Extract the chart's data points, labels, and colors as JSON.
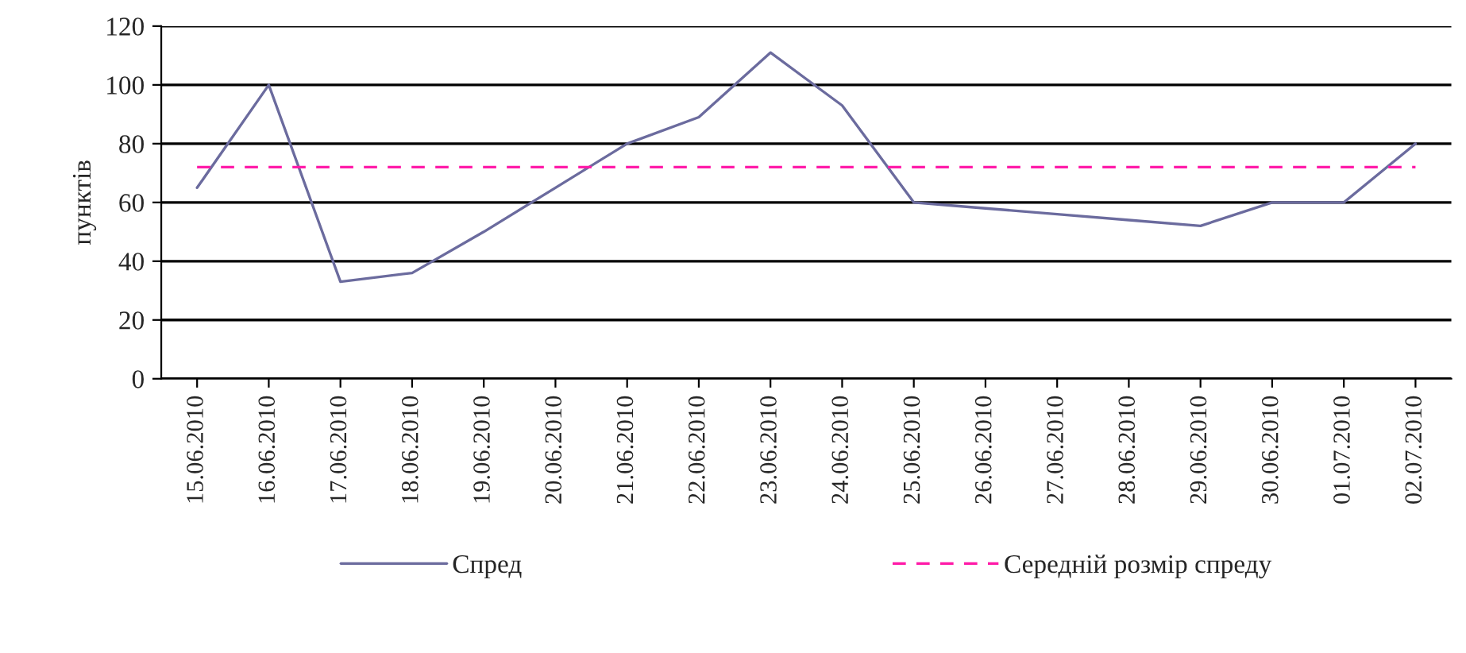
{
  "chart_data": {
    "type": "line",
    "ylabel": "пунктів",
    "categories": [
      "15.06.2010",
      "16.06.2010",
      "17.06.2010",
      "18.06.2010",
      "19.06.2010",
      "20.06.2010",
      "21.06.2010",
      "22.06.2010",
      "23.06.2010",
      "24.06.2010",
      "25.06.2010",
      "26.06.2010",
      "27.06.2010",
      "28.06.2010",
      "29.06.2010",
      "30.06.2010",
      "01.07.2010",
      "02.07.2010"
    ],
    "series": [
      {
        "name": "Спред",
        "color": "#6b6b9e",
        "line_style": "solid",
        "values": [
          65,
          100,
          33,
          36,
          50,
          65,
          80,
          89,
          111,
          93,
          60,
          58,
          56,
          54,
          52,
          60,
          60,
          80
        ]
      },
      {
        "name": "Середній розмір спреду",
        "color": "#ff1aa8",
        "line_style": "dashed",
        "values": [
          72,
          72,
          72,
          72,
          72,
          72,
          72,
          72,
          72,
          72,
          72,
          72,
          72,
          72,
          72,
          72,
          72,
          72
        ]
      }
    ],
    "ylim": [
      0,
      120
    ],
    "yticks": [
      0,
      20,
      40,
      60,
      80,
      100,
      120
    ],
    "grid": "y",
    "legend": "bottom"
  }
}
